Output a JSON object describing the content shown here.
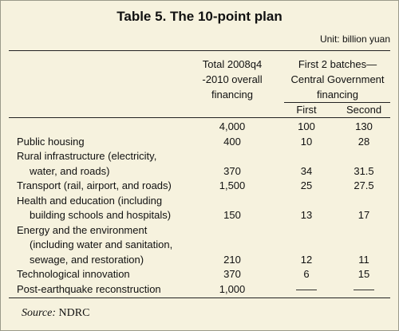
{
  "header": {
    "title": "Table 5. The 10-point plan",
    "unit": "Unit: billion yuan"
  },
  "table": {
    "columns": [
      {
        "lines": [
          "Total 2008q4",
          "-2010 overall",
          "financing"
        ]
      },
      {
        "lines": [
          "First 2 batches—",
          "Central Government",
          "financing"
        ],
        "sub": [
          "First",
          "Second"
        ]
      }
    ],
    "rows": [
      {
        "label": [],
        "values": [
          "4,000",
          "100",
          "130"
        ]
      },
      {
        "label": [
          "Public housing"
        ],
        "values": [
          "400",
          "10",
          "28"
        ]
      },
      {
        "label": [
          "Rural infrastructure (electricity,",
          "water, and roads)"
        ],
        "values": [
          "370",
          "34",
          "31.5"
        ]
      },
      {
        "label": [
          "Transport (rail, airport, and roads)"
        ],
        "values": [
          "1,500",
          "25",
          "27.5"
        ]
      },
      {
        "label": [
          "Health and education (including",
          "building schools and hospitals)"
        ],
        "values": [
          "150",
          "13",
          "17"
        ]
      },
      {
        "label": [
          "Energy and the environment",
          "(including water and sanitation,",
          "sewage, and restoration)"
        ],
        "values": [
          "210",
          "12",
          "11"
        ]
      },
      {
        "label": [
          "Technological innovation"
        ],
        "values": [
          "370",
          "6",
          "15"
        ]
      },
      {
        "label": [
          "Post-earthquake reconstruction"
        ],
        "values": [
          "1,000",
          "——",
          "——"
        ]
      }
    ]
  },
  "footer": {
    "source_label": "Source:",
    "source": "NDRC"
  }
}
